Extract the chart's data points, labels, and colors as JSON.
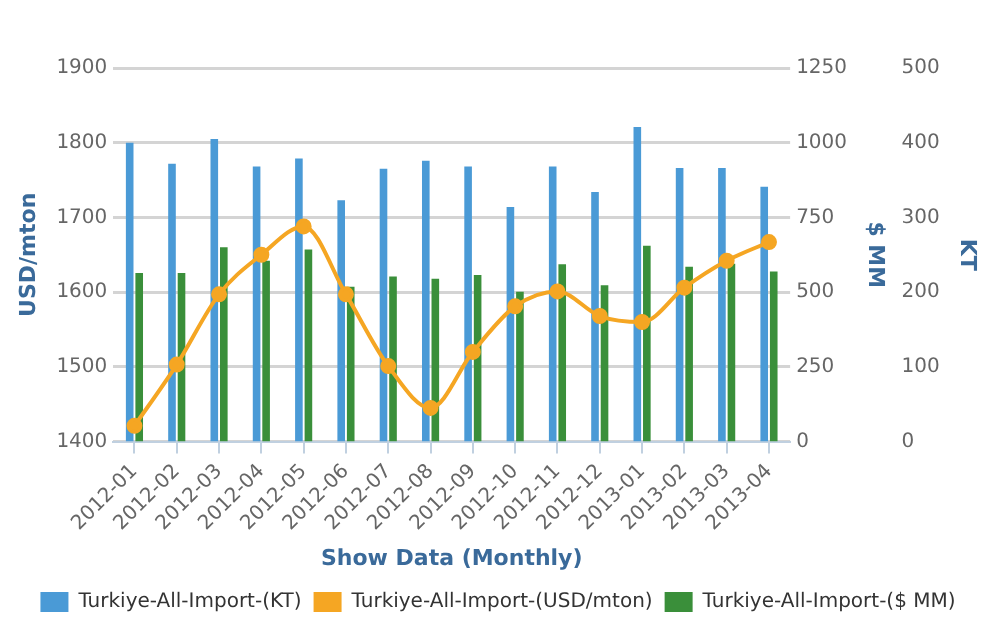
{
  "chart_data": {
    "type": "bar",
    "xlabel": "Show Data (Monthly)",
    "ylabel": "USD/mton",
    "y2label": "$ MM",
    "y3label": "KT",
    "categories": [
      "2012-01",
      "2012-02",
      "2012-03",
      "2012-04",
      "2012-05",
      "2012-06",
      "2012-07",
      "2012-08",
      "2012-09",
      "2012-10",
      "2012-11",
      "2012-12",
      "2013-01",
      "2013-02",
      "2013-03",
      "2013-04"
    ],
    "series": [
      {
        "name": "Turkiye-All-Import-(KT)",
        "axis": "y3",
        "color": "#4a9ad6",
        "values": [
          400,
          372,
          405,
          368,
          379,
          323,
          365,
          376,
          368,
          314,
          368,
          334,
          421,
          366,
          366,
          341
        ]
      },
      {
        "name": "Turkiye-All-Import-(USD/mton)",
        "type": "line",
        "color": "#f5a623",
        "values": [
          1421,
          1503,
          1597,
          1650,
          1688,
          1597,
          1501,
          1445,
          1520,
          1581,
          1601,
          1568,
          1560,
          1606,
          1642,
          1667
        ]
      },
      {
        "name": "Turkiye-All-Import-($ MM)",
        "axis": "y2",
        "color": "#3a8f3a",
        "values": [
          564,
          564,
          650,
          605,
          643,
          518,
          552,
          545,
          557,
          501,
          593,
          523,
          655,
          585,
          595,
          569
        ]
      }
    ],
    "ylim": [
      1400,
      1900
    ],
    "yticks": [
      1400,
      1500,
      1600,
      1700,
      1800,
      1900
    ],
    "y2lim": [
      0,
      1250
    ],
    "y2ticks": [
      0,
      250,
      500,
      750,
      1000,
      1250
    ],
    "y3lim": [
      0,
      500
    ],
    "y3ticks": [
      0,
      100,
      200,
      300,
      400,
      500
    ],
    "grid": "y",
    "legend": "bottom",
    "marker": "circle",
    "line_style": "solid"
  }
}
